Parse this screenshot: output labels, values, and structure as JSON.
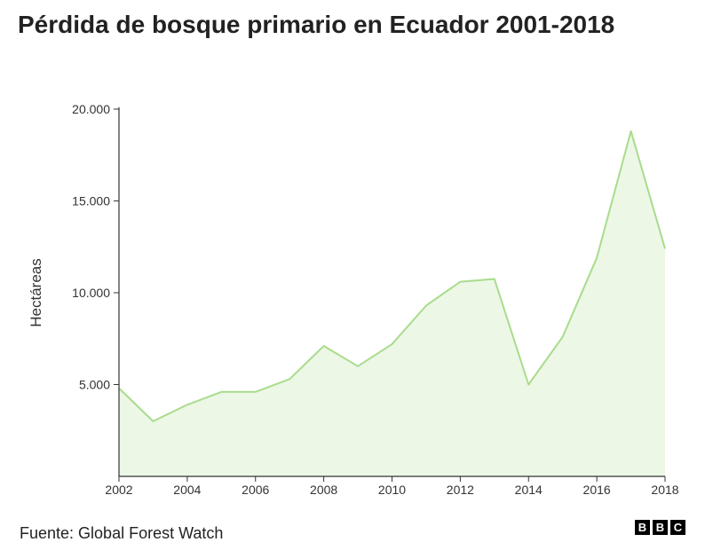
{
  "title": "Pérdida de bosque primario en Ecuador 2001-2018",
  "source": "Fuente: Global Forest Watch",
  "logo_letters": [
    "B",
    "B",
    "C"
  ],
  "colors": {
    "line": "#a8dc8c",
    "area": "#edf7e6",
    "axis": "#333333"
  },
  "chart_data": {
    "type": "area",
    "title": "Pérdida de bosque primario en Ecuador 2001-2018",
    "xlabel": "",
    "ylabel": "Hectáreas",
    "x": [
      2002,
      2003,
      2004,
      2005,
      2006,
      2007,
      2008,
      2009,
      2010,
      2011,
      2012,
      2013,
      2014,
      2015,
      2016,
      2017,
      2018
    ],
    "values": [
      4800,
      3000,
      3900,
      4600,
      4600,
      5300,
      7100,
      6000,
      7200,
      9300,
      10600,
      10750,
      5000,
      7600,
      11900,
      18800,
      12400
    ],
    "xlim": [
      2002,
      2018
    ],
    "ylim": [
      0,
      20000
    ],
    "x_ticks": [
      2002,
      2004,
      2006,
      2008,
      2010,
      2012,
      2014,
      2016,
      2018
    ],
    "x_tick_labels": [
      "2002",
      "2004",
      "2006",
      "2008",
      "2010",
      "2012",
      "2014",
      "2016",
      "2018"
    ],
    "y_ticks": [
      5000,
      10000,
      15000,
      20000
    ],
    "y_tick_labels": [
      "5.000",
      "10.000",
      "15.000",
      "20.000"
    ],
    "grid": false,
    "legend": "none"
  }
}
